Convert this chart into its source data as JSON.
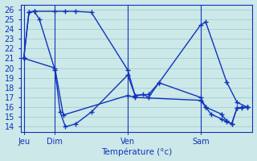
{
  "xlabel": "Température (°c)",
  "bg_color": "#cce8e8",
  "grid_color": "#99cccc",
  "line_color": "#1133bb",
  "ylim": [
    13.5,
    26.5
  ],
  "yticks": [
    14,
    15,
    16,
    17,
    18,
    19,
    20,
    21,
    22,
    23,
    24,
    25,
    26
  ],
  "xtick_labels": [
    "Jeu",
    "Dim",
    "Ven",
    "Sam"
  ],
  "xtick_positions": [
    0,
    3,
    10,
    17
  ],
  "xlim": [
    -0.3,
    22
  ],
  "series1_x": [
    0,
    0.5,
    1.0,
    3.0,
    4.0,
    5.0,
    6.5,
    10.0,
    10.7,
    12.0,
    13.0,
    17.0,
    17.5,
    19.5,
    20.5,
    21.5
  ],
  "series1_y": [
    21,
    25.7,
    25.8,
    25.8,
    25.8,
    25.8,
    25.7,
    19.8,
    17.2,
    17.3,
    18.5,
    24.4,
    24.7,
    18.6,
    16.5,
    16.0
  ],
  "series2_x": [
    0,
    0.5,
    1.0,
    1.5,
    3.0,
    3.5,
    4.0,
    5.0,
    6.5,
    10.0,
    10.7,
    11.5,
    12.0,
    13.0,
    17.0,
    17.5,
    19.0,
    19.5,
    20.0,
    20.5,
    21.0,
    21.5
  ],
  "series2_y": [
    21,
    25.7,
    25.8,
    25.0,
    19.8,
    15.5,
    14.0,
    14.3,
    15.5,
    19.3,
    17.2,
    17.3,
    17.0,
    18.5,
    17.0,
    16.0,
    15.3,
    14.6,
    14.3,
    15.9,
    16.0,
    16.0
  ],
  "series3_x": [
    0,
    3.0,
    3.8,
    10.0,
    10.7,
    17.0,
    17.5,
    18.0,
    19.0,
    19.5,
    20.0,
    20.5,
    21.0,
    21.5
  ],
  "series3_y": [
    21,
    20.0,
    15.2,
    17.2,
    17.0,
    16.7,
    16.0,
    15.3,
    14.8,
    14.5,
    14.3,
    15.9,
    15.9,
    16.0
  ],
  "marker_size": 3,
  "line_width": 1.0
}
